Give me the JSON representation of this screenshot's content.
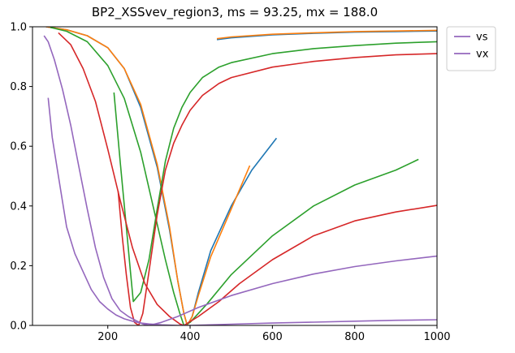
{
  "chart_data": {
    "type": "line",
    "title": "BP2_XSSvev_region3, ms = 93.25, mx = 188.0",
    "xlabel": "",
    "ylabel": "",
    "xlim": [
      17,
      1000
    ],
    "ylim": [
      0,
      1.0
    ],
    "x_ticks": [
      {
        "v": 200,
        "label": "200"
      },
      {
        "v": 400,
        "label": "400"
      },
      {
        "v": 600,
        "label": "600"
      },
      {
        "v": 800,
        "label": "800"
      },
      {
        "v": 1000,
        "label": "1000"
      }
    ],
    "y_ticks": [
      {
        "v": 0,
        "label": "0.0"
      },
      {
        "v": 0.2,
        "label": "0.2"
      },
      {
        "v": 0.4,
        "label": "0.4"
      },
      {
        "v": 0.6,
        "label": "0.6"
      },
      {
        "v": 0.8,
        "label": "0.8"
      },
      {
        "v": 1.0,
        "label": "1.0"
      }
    ],
    "grid": false,
    "legend": {
      "placement": "outside-top-right",
      "entries": [
        {
          "label": "vs",
          "color": "#9467bd"
        },
        {
          "label": "vx",
          "color": "#9467bd"
        }
      ]
    },
    "series": [
      {
        "color": "#1f77b4",
        "points": [
          [
            50,
            1.0
          ],
          [
            100,
            0.99
          ],
          [
            150,
            0.97
          ],
          [
            200,
            0.93
          ],
          [
            240,
            0.86
          ],
          [
            280,
            0.73
          ],
          [
            320,
            0.53
          ],
          [
            350,
            0.32
          ],
          [
            370,
            0.15
          ],
          [
            385,
            0.04
          ],
          [
            393,
            0.0
          ],
          [
            405,
            0.03
          ],
          [
            420,
            0.11
          ],
          [
            450,
            0.25
          ],
          [
            500,
            0.4
          ],
          [
            550,
            0.52
          ],
          [
            610,
            0.627
          ]
        ]
      },
      {
        "color": "#ff7f0e",
        "points": [
          [
            50,
            1.0
          ],
          [
            100,
            0.99
          ],
          [
            150,
            0.97
          ],
          [
            200,
            0.93
          ],
          [
            240,
            0.86
          ],
          [
            280,
            0.74
          ],
          [
            320,
            0.54
          ],
          [
            350,
            0.33
          ],
          [
            370,
            0.15
          ],
          [
            385,
            0.04
          ],
          [
            393,
            0.0
          ],
          [
            405,
            0.03
          ],
          [
            420,
            0.1
          ],
          [
            450,
            0.23
          ],
          [
            500,
            0.39
          ],
          [
            545,
            0.535
          ]
        ]
      },
      {
        "color": "#1f77b4",
        "points": [
          [
            465,
            0.957
          ],
          [
            500,
            0.963
          ],
          [
            600,
            0.973
          ],
          [
            700,
            0.978
          ],
          [
            800,
            0.982
          ],
          [
            900,
            0.984
          ],
          [
            1000,
            0.986
          ]
        ]
      },
      {
        "color": "#ff7f0e",
        "points": [
          [
            465,
            0.96
          ],
          [
            500,
            0.966
          ],
          [
            600,
            0.975
          ],
          [
            700,
            0.98
          ],
          [
            800,
            0.984
          ],
          [
            900,
            0.986
          ],
          [
            1000,
            0.988
          ]
        ]
      },
      {
        "color": "#2ca02c",
        "points": [
          [
            60,
            0.998
          ],
          [
            100,
            0.985
          ],
          [
            150,
            0.95
          ],
          [
            200,
            0.87
          ],
          [
            240,
            0.76
          ],
          [
            280,
            0.58
          ],
          [
            310,
            0.4
          ],
          [
            340,
            0.22
          ],
          [
            360,
            0.11
          ],
          [
            375,
            0.04
          ],
          [
            385,
            0.0
          ],
          [
            400,
            0.01
          ],
          [
            440,
            0.07
          ],
          [
            500,
            0.17
          ],
          [
            600,
            0.3
          ],
          [
            700,
            0.4
          ],
          [
            800,
            0.47
          ],
          [
            900,
            0.52
          ],
          [
            955,
            0.556
          ]
        ]
      },
      {
        "color": "#2ca02c",
        "points": [
          [
            215,
            0.78
          ],
          [
            230,
            0.55
          ],
          [
            245,
            0.33
          ],
          [
            255,
            0.18
          ],
          [
            262,
            0.08
          ],
          [
            280,
            0.11
          ],
          [
            300,
            0.22
          ],
          [
            320,
            0.39
          ],
          [
            340,
            0.55
          ],
          [
            360,
            0.66
          ],
          [
            380,
            0.73
          ],
          [
            400,
            0.78
          ],
          [
            430,
            0.83
          ],
          [
            470,
            0.865
          ],
          [
            500,
            0.88
          ],
          [
            600,
            0.91
          ],
          [
            700,
            0.927
          ],
          [
            800,
            0.937
          ],
          [
            900,
            0.945
          ],
          [
            1000,
            0.95
          ]
        ]
      },
      {
        "color": "#d62728",
        "points": [
          [
            80,
            0.98
          ],
          [
            110,
            0.94
          ],
          [
            140,
            0.86
          ],
          [
            170,
            0.75
          ],
          [
            200,
            0.59
          ],
          [
            230,
            0.42
          ],
          [
            260,
            0.26
          ],
          [
            290,
            0.14
          ],
          [
            320,
            0.07
          ],
          [
            350,
            0.03
          ],
          [
            375,
            0.005
          ],
          [
            385,
            0.0
          ],
          [
            420,
            0.03
          ],
          [
            470,
            0.08
          ],
          [
            520,
            0.14
          ],
          [
            600,
            0.22
          ],
          [
            700,
            0.3
          ],
          [
            800,
            0.35
          ],
          [
            900,
            0.38
          ],
          [
            1000,
            0.402
          ]
        ]
      },
      {
        "color": "#d62728",
        "points": [
          [
            225,
            0.45
          ],
          [
            235,
            0.3
          ],
          [
            245,
            0.17
          ],
          [
            255,
            0.06
          ],
          [
            265,
            0.01
          ],
          [
            275,
            0.0
          ],
          [
            285,
            0.04
          ],
          [
            300,
            0.18
          ],
          [
            320,
            0.37
          ],
          [
            340,
            0.52
          ],
          [
            360,
            0.61
          ],
          [
            380,
            0.67
          ],
          [
            400,
            0.72
          ],
          [
            430,
            0.77
          ],
          [
            470,
            0.81
          ],
          [
            500,
            0.83
          ],
          [
            600,
            0.865
          ],
          [
            700,
            0.884
          ],
          [
            800,
            0.897
          ],
          [
            900,
            0.906
          ],
          [
            1000,
            0.91
          ]
        ]
      },
      {
        "color": "#9467bd",
        "points": [
          [
            45,
            0.97
          ],
          [
            55,
            0.95
          ],
          [
            70,
            0.89
          ],
          [
            90,
            0.79
          ],
          [
            110,
            0.67
          ],
          [
            130,
            0.53
          ],
          [
            150,
            0.39
          ],
          [
            170,
            0.26
          ],
          [
            190,
            0.16
          ],
          [
            210,
            0.09
          ],
          [
            230,
            0.05
          ],
          [
            250,
            0.03
          ],
          [
            270,
            0.015
          ],
          [
            285,
            0.005
          ],
          [
            300,
            0.0
          ],
          [
            330,
            0.01
          ],
          [
            370,
            0.03
          ],
          [
            420,
            0.06
          ],
          [
            500,
            0.1
          ],
          [
            600,
            0.14
          ],
          [
            700,
            0.172
          ],
          [
            800,
            0.197
          ],
          [
            900,
            0.216
          ],
          [
            1000,
            0.232
          ]
        ]
      },
      {
        "color": "#9467bd",
        "points": [
          [
            55,
            0.762
          ],
          [
            65,
            0.63
          ],
          [
            80,
            0.5
          ],
          [
            100,
            0.33
          ],
          [
            120,
            0.24
          ],
          [
            140,
            0.18
          ],
          [
            160,
            0.12
          ],
          [
            180,
            0.08
          ],
          [
            200,
            0.055
          ],
          [
            220,
            0.035
          ],
          [
            240,
            0.022
          ],
          [
            260,
            0.014
          ],
          [
            280,
            0.008
          ],
          [
            300,
            0.005
          ],
          [
            330,
            0.002
          ],
          [
            370,
            0.0
          ],
          [
            400,
            0.0
          ],
          [
            500,
            0.004
          ],
          [
            600,
            0.008
          ],
          [
            700,
            0.011
          ],
          [
            800,
            0.014
          ],
          [
            900,
            0.017
          ],
          [
            1000,
            0.019
          ]
        ]
      }
    ]
  }
}
